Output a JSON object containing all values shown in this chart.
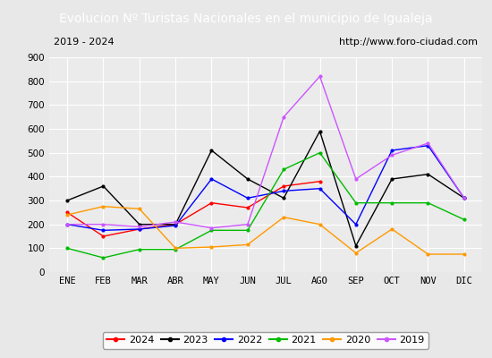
{
  "title": "Evolucion Nº Turistas Nacionales en el municipio de Igualeja",
  "subtitle_left": "2019 - 2024",
  "subtitle_right": "http://www.foro-ciudad.com",
  "x_labels": [
    "ENE",
    "FEB",
    "MAR",
    "ABR",
    "MAY",
    "JUN",
    "JUL",
    "AGO",
    "SEP",
    "OCT",
    "NOV",
    "DIC"
  ],
  "ylim": [
    0,
    900
  ],
  "yticks": [
    0,
    100,
    200,
    300,
    400,
    500,
    600,
    700,
    800,
    900
  ],
  "series": {
    "2024": {
      "color": "#ff0000",
      "data": [
        250,
        150,
        180,
        200,
        290,
        270,
        360,
        380,
        null,
        null,
        null,
        null
      ]
    },
    "2023": {
      "color": "#000000",
      "data": [
        300,
        360,
        200,
        200,
        510,
        390,
        310,
        590,
        110,
        390,
        410,
        310
      ]
    },
    "2022": {
      "color": "#0000ff",
      "data": [
        200,
        175,
        180,
        195,
        390,
        310,
        340,
        350,
        200,
        510,
        530,
        310
      ]
    },
    "2021": {
      "color": "#00bb00",
      "data": [
        100,
        60,
        95,
        95,
        175,
        175,
        430,
        500,
        290,
        290,
        290,
        220
      ]
    },
    "2020": {
      "color": "#ff9900",
      "data": [
        240,
        275,
        265,
        100,
        105,
        115,
        230,
        200,
        80,
        180,
        75,
        75
      ]
    },
    "2019": {
      "color": "#cc55ff",
      "data": [
        200,
        200,
        190,
        210,
        185,
        200,
        650,
        820,
        390,
        490,
        540,
        310
      ]
    }
  },
  "legend_order": [
    "2024",
    "2023",
    "2022",
    "2021",
    "2020",
    "2019"
  ],
  "background_color": "#e8e8e8",
  "title_bg_color": "#4a6fa5",
  "title_text_color": "#ffffff",
  "plot_bg_color": "#ebebeb",
  "grid_color": "#ffffff",
  "subtitle_box_color": "#ffffff",
  "title_fontsize": 10,
  "axis_fontsize": 7.5,
  "legend_fontsize": 8
}
